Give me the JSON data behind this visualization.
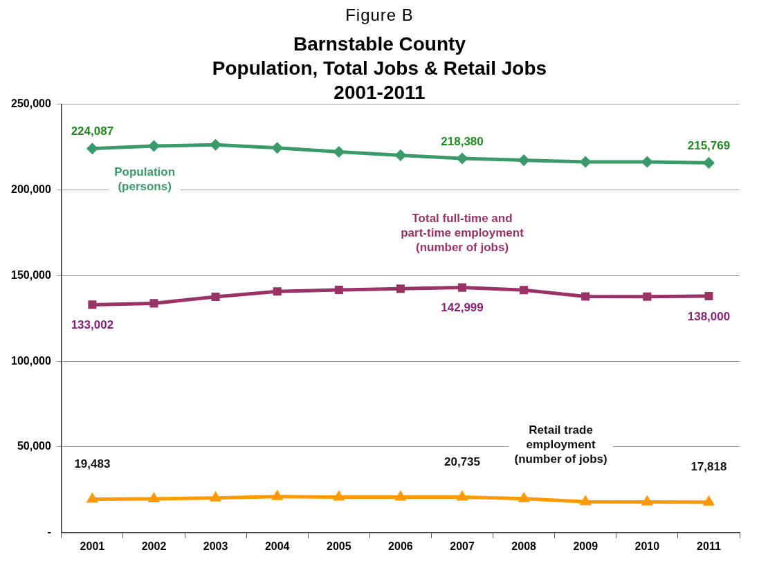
{
  "chart_data": {
    "type": "line",
    "subtitle": "Figure B",
    "title": "Barnstable County\nPopulation, Total Jobs & Retail Jobs\n2001-2011",
    "categories": [
      "2001",
      "2002",
      "2003",
      "2004",
      "2005",
      "2006",
      "2007",
      "2008",
      "2009",
      "2010",
      "2011"
    ],
    "series": [
      {
        "name": "Population (persons)",
        "color": "#3a9a6a",
        "marker": "diamond",
        "values": [
          224087,
          225600,
          226300,
          224500,
          222200,
          220200,
          218380,
          217300,
          216300,
          216300,
          215769
        ],
        "value_labels": [
          "224,087",
          null,
          null,
          null,
          null,
          null,
          "218,380",
          null,
          null,
          null,
          "215,769"
        ]
      },
      {
        "name": "Total full-time and part-time employment (number of jobs)",
        "color": "#993366",
        "marker": "square",
        "values": [
          133002,
          133800,
          137600,
          140700,
          141600,
          142300,
          142999,
          141500,
          137800,
          137700,
          138000
        ],
        "value_labels": [
          "133,002",
          null,
          null,
          null,
          null,
          null,
          "142,999",
          null,
          null,
          null,
          "138,000"
        ]
      },
      {
        "name": "Retail trade employment (number of jobs)",
        "color": "#ff9900",
        "marker": "triangle",
        "values": [
          19483,
          19700,
          20200,
          21000,
          20700,
          20700,
          20735,
          19800,
          18000,
          17900,
          17818
        ],
        "value_labels": [
          "19,483",
          null,
          null,
          null,
          null,
          null,
          "20,735",
          null,
          null,
          null,
          "17,818"
        ]
      }
    ],
    "ylim": [
      0,
      250000
    ],
    "yticks": [
      {
        "value": 0,
        "label": "-"
      },
      {
        "value": 50000,
        "label": "50,000"
      },
      {
        "value": 100000,
        "label": "100,000"
      },
      {
        "value": 150000,
        "label": "150,000"
      },
      {
        "value": 200000,
        "label": "200,000"
      },
      {
        "value": 250000,
        "label": "250,000"
      }
    ],
    "grid": "y",
    "legend": false
  }
}
